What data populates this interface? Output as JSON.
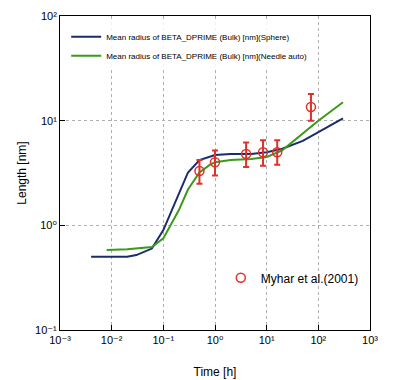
{
  "chart_data": {
    "type": "line",
    "x_label": "Time [h]",
    "y_label": "Length [nm]",
    "log": true,
    "grid": true,
    "legend": "upper left",
    "xlim": [
      0.001,
      1000
    ],
    "ylim": [
      0.1,
      100
    ],
    "xticks": [
      {
        "value": 0.001,
        "label": "10⁻³"
      },
      {
        "value": 0.01,
        "label": "10⁻²"
      },
      {
        "value": 0.1,
        "label": "10⁻¹"
      },
      {
        "value": 1,
        "label": "10⁰"
      },
      {
        "value": 10,
        "label": "10¹"
      },
      {
        "value": 100,
        "label": "10²"
      },
      {
        "value": 1000,
        "label": "10³"
      }
    ],
    "yticks": [
      {
        "value": 0.1,
        "label": "10⁻¹"
      },
      {
        "value": 1,
        "label": "10⁰"
      },
      {
        "value": 10,
        "label": "10¹"
      },
      {
        "value": 100,
        "label": "10²"
      }
    ],
    "series": [
      {
        "name": "Mean radius of BETA_DPRIME (Bulk) [nm](Sphere)",
        "type": "line",
        "color": "#1c2a6e",
        "line_style": "solid",
        "x": [
          0.004,
          0.01,
          0.02,
          0.03,
          0.06,
          0.1,
          0.2,
          0.3,
          0.5,
          1,
          2,
          5,
          10,
          20,
          50,
          100,
          300
        ],
        "values": [
          0.5,
          0.5,
          0.5,
          0.52,
          0.6,
          0.9,
          2.0,
          3.2,
          4.2,
          4.7,
          4.8,
          4.8,
          5.0,
          5.4,
          6.4,
          7.8,
          10.5
        ]
      },
      {
        "name": "Mean radius of BETA_DPRIME (Bulk) [nm](Needle auto)",
        "type": "line",
        "color": "#3a9a1a",
        "line_style": "solid",
        "x": [
          0.008,
          0.02,
          0.06,
          0.1,
          0.2,
          0.3,
          0.5,
          0.8,
          1,
          2,
          5,
          10,
          20,
          50,
          100,
          300
        ],
        "values": [
          0.58,
          0.59,
          0.62,
          0.75,
          1.4,
          2.2,
          3.2,
          3.8,
          4.0,
          4.2,
          4.3,
          4.5,
          5.2,
          7.5,
          10.0,
          15.0
        ]
      },
      {
        "name": "Myhar et al.(2001)",
        "type": "scatter",
        "color": "#e0302a",
        "marker": "circle-open",
        "legend": "lower right",
        "x": [
          0.5,
          1,
          4,
          8.5,
          16,
          72
        ],
        "values": [
          3.3,
          4.0,
          4.8,
          5.0,
          5.0,
          13.5
        ],
        "error_plus": [
          0.9,
          1.2,
          1.4,
          1.5,
          1.5,
          4.5
        ],
        "error_minus": [
          0.8,
          1.0,
          1.2,
          1.3,
          1.2,
          3.5
        ]
      }
    ]
  }
}
